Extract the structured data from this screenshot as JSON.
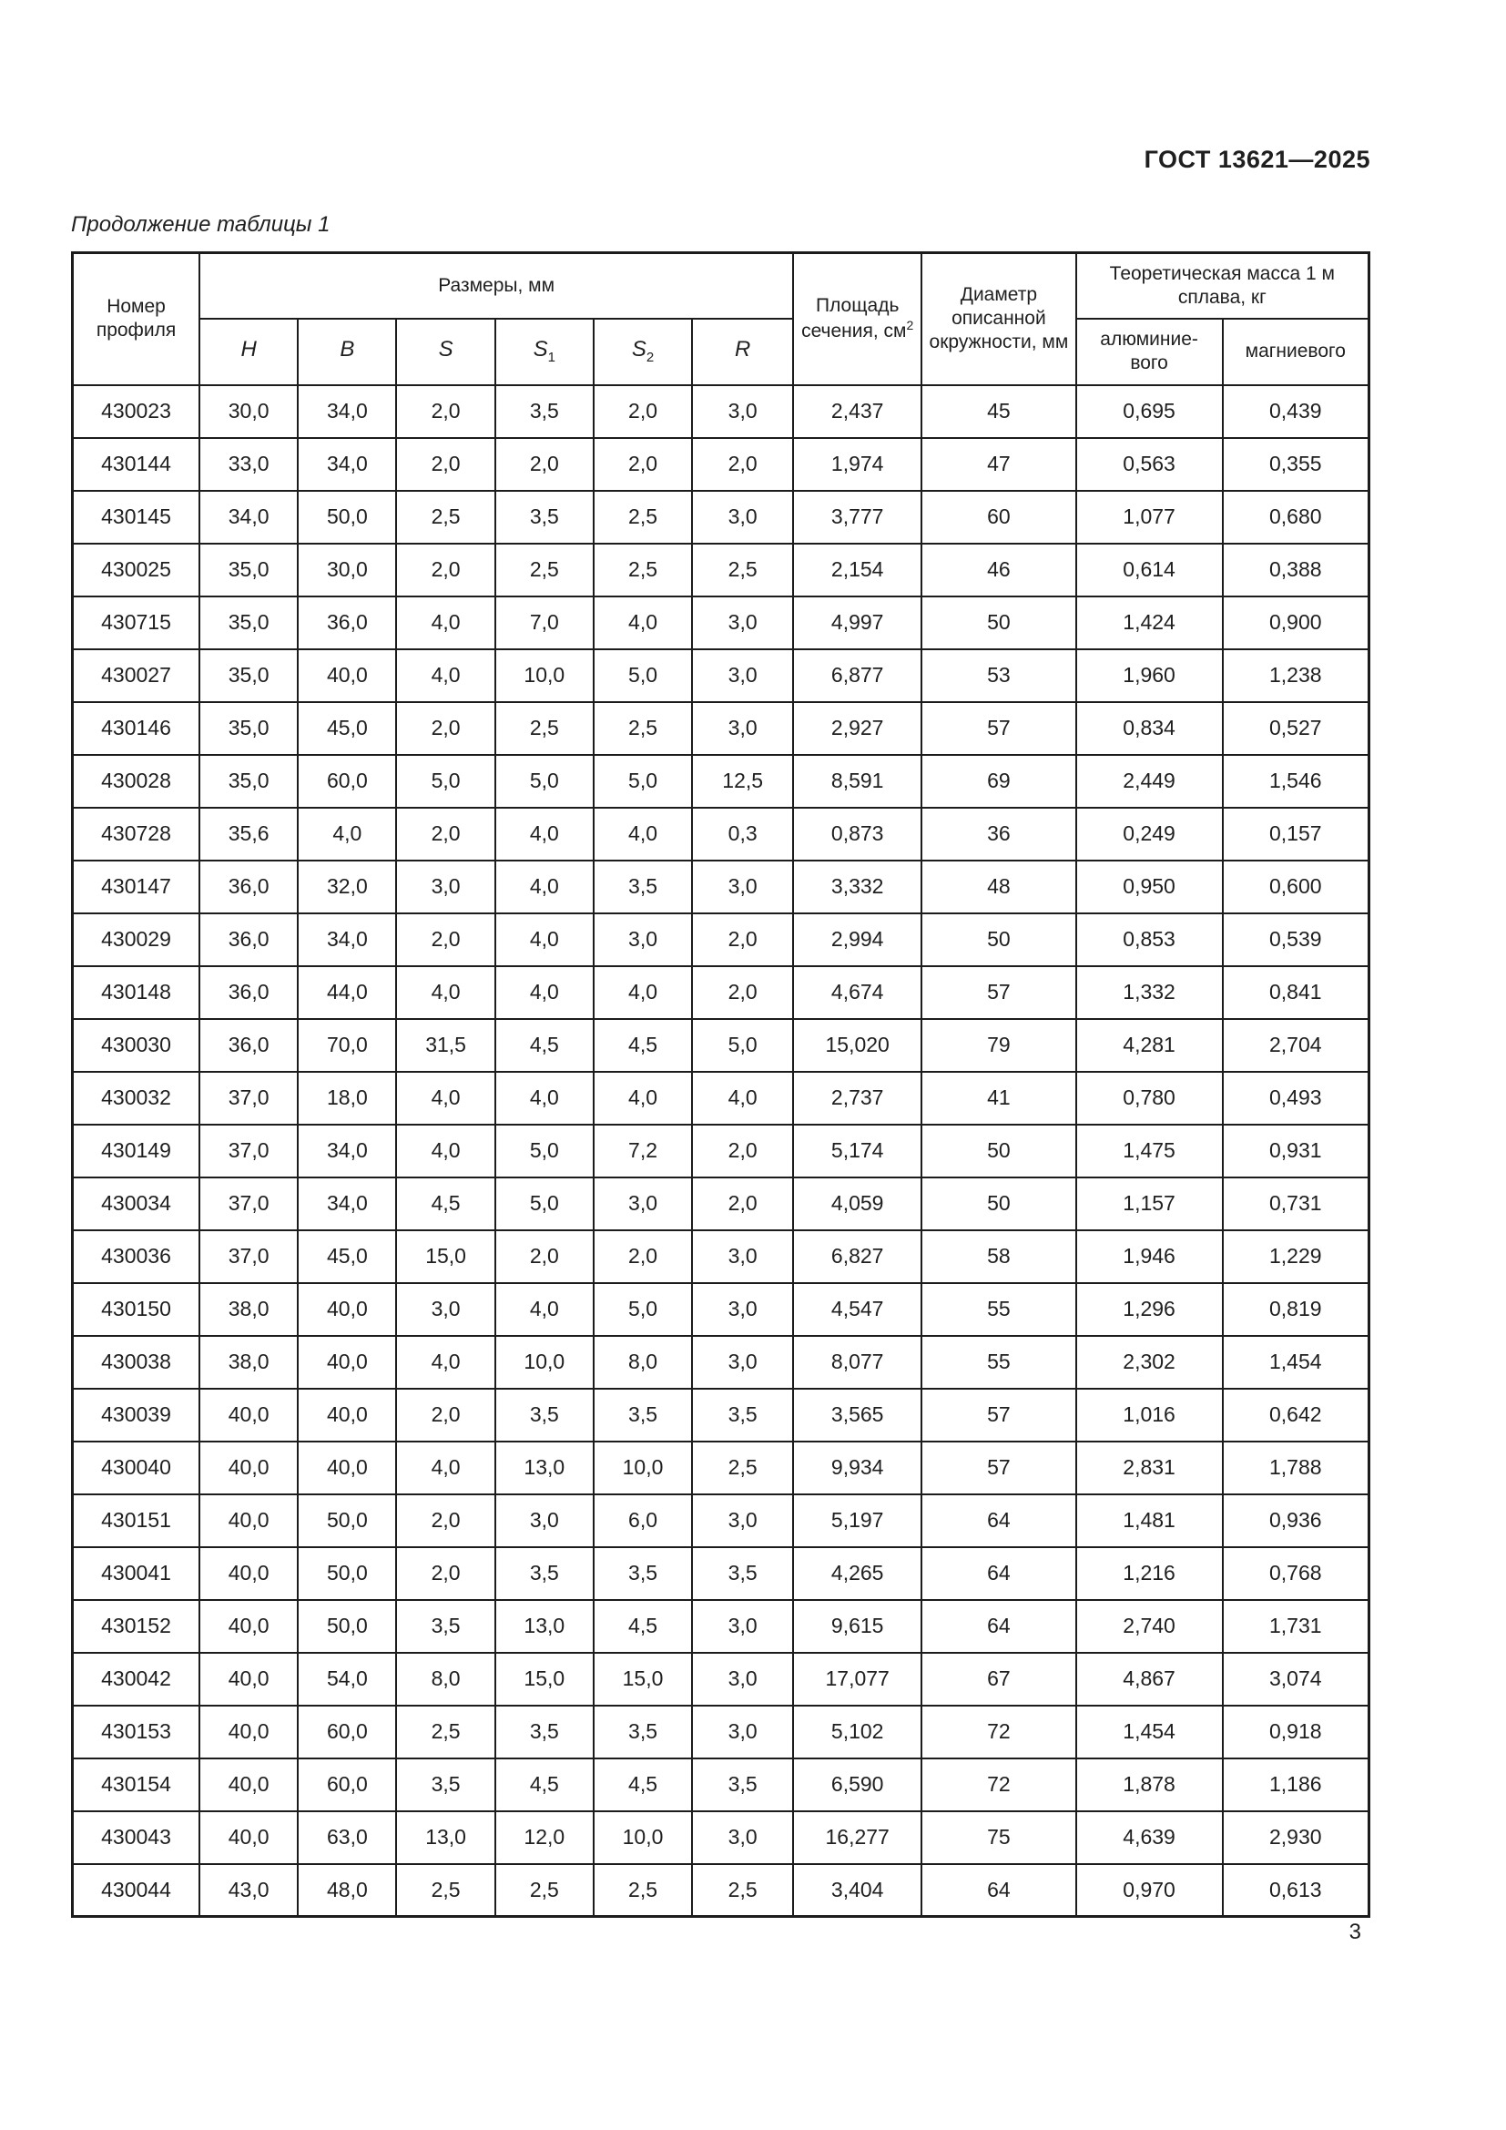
{
  "page": {
    "standard_code": "ГОСТ 13621—2025",
    "table_caption": "Продолжение таблицы 1",
    "page_number": "3"
  },
  "table": {
    "header": {
      "profile_number": "Номер профиля",
      "dimensions_group": "Размеры, мм",
      "dim_cols": [
        {
          "base": "H",
          "sub": ""
        },
        {
          "base": "B",
          "sub": ""
        },
        {
          "base": "S",
          "sub": ""
        },
        {
          "base": "S",
          "sub": "1"
        },
        {
          "base": "S",
          "sub": "2"
        },
        {
          "base": "R",
          "sub": ""
        }
      ],
      "area_main": "Площадь сечения, см",
      "area_sup": "2",
      "diameter": "Диаметр описанной окружности, мм",
      "mass_group": "Теоретическая масса 1 м сплава, кг",
      "mass_aluminum_line1": "алюминие-",
      "mass_aluminum_line2": "вого",
      "mass_magnesium": "магниевого"
    },
    "rows": [
      [
        "430023",
        "30,0",
        "34,0",
        "2,0",
        "3,5",
        "2,0",
        "3,0",
        "2,437",
        "45",
        "0,695",
        "0,439"
      ],
      [
        "430144",
        "33,0",
        "34,0",
        "2,0",
        "2,0",
        "2,0",
        "2,0",
        "1,974",
        "47",
        "0,563",
        "0,355"
      ],
      [
        "430145",
        "34,0",
        "50,0",
        "2,5",
        "3,5",
        "2,5",
        "3,0",
        "3,777",
        "60",
        "1,077",
        "0,680"
      ],
      [
        "430025",
        "35,0",
        "30,0",
        "2,0",
        "2,5",
        "2,5",
        "2,5",
        "2,154",
        "46",
        "0,614",
        "0,388"
      ],
      [
        "430715",
        "35,0",
        "36,0",
        "4,0",
        "7,0",
        "4,0",
        "3,0",
        "4,997",
        "50",
        "1,424",
        "0,900"
      ],
      [
        "430027",
        "35,0",
        "40,0",
        "4,0",
        "10,0",
        "5,0",
        "3,0",
        "6,877",
        "53",
        "1,960",
        "1,238"
      ],
      [
        "430146",
        "35,0",
        "45,0",
        "2,0",
        "2,5",
        "2,5",
        "3,0",
        "2,927",
        "57",
        "0,834",
        "0,527"
      ],
      [
        "430028",
        "35,0",
        "60,0",
        "5,0",
        "5,0",
        "5,0",
        "12,5",
        "8,591",
        "69",
        "2,449",
        "1,546"
      ],
      [
        "430728",
        "35,6",
        "4,0",
        "2,0",
        "4,0",
        "4,0",
        "0,3",
        "0,873",
        "36",
        "0,249",
        "0,157"
      ],
      [
        "430147",
        "36,0",
        "32,0",
        "3,0",
        "4,0",
        "3,5",
        "3,0",
        "3,332",
        "48",
        "0,950",
        "0,600"
      ],
      [
        "430029",
        "36,0",
        "34,0",
        "2,0",
        "4,0",
        "3,0",
        "2,0",
        "2,994",
        "50",
        "0,853",
        "0,539"
      ],
      [
        "430148",
        "36,0",
        "44,0",
        "4,0",
        "4,0",
        "4,0",
        "2,0",
        "4,674",
        "57",
        "1,332",
        "0,841"
      ],
      [
        "430030",
        "36,0",
        "70,0",
        "31,5",
        "4,5",
        "4,5",
        "5,0",
        "15,020",
        "79",
        "4,281",
        "2,704"
      ],
      [
        "430032",
        "37,0",
        "18,0",
        "4,0",
        "4,0",
        "4,0",
        "4,0",
        "2,737",
        "41",
        "0,780",
        "0,493"
      ],
      [
        "430149",
        "37,0",
        "34,0",
        "4,0",
        "5,0",
        "7,2",
        "2,0",
        "5,174",
        "50",
        "1,475",
        "0,931"
      ],
      [
        "430034",
        "37,0",
        "34,0",
        "4,5",
        "5,0",
        "3,0",
        "2,0",
        "4,059",
        "50",
        "1,157",
        "0,731"
      ],
      [
        "430036",
        "37,0",
        "45,0",
        "15,0",
        "2,0",
        "2,0",
        "3,0",
        "6,827",
        "58",
        "1,946",
        "1,229"
      ],
      [
        "430150",
        "38,0",
        "40,0",
        "3,0",
        "4,0",
        "5,0",
        "3,0",
        "4,547",
        "55",
        "1,296",
        "0,819"
      ],
      [
        "430038",
        "38,0",
        "40,0",
        "4,0",
        "10,0",
        "8,0",
        "3,0",
        "8,077",
        "55",
        "2,302",
        "1,454"
      ],
      [
        "430039",
        "40,0",
        "40,0",
        "2,0",
        "3,5",
        "3,5",
        "3,5",
        "3,565",
        "57",
        "1,016",
        "0,642"
      ],
      [
        "430040",
        "40,0",
        "40,0",
        "4,0",
        "13,0",
        "10,0",
        "2,5",
        "9,934",
        "57",
        "2,831",
        "1,788"
      ],
      [
        "430151",
        "40,0",
        "50,0",
        "2,0",
        "3,0",
        "6,0",
        "3,0",
        "5,197",
        "64",
        "1,481",
        "0,936"
      ],
      [
        "430041",
        "40,0",
        "50,0",
        "2,0",
        "3,5",
        "3,5",
        "3,5",
        "4,265",
        "64",
        "1,216",
        "0,768"
      ],
      [
        "430152",
        "40,0",
        "50,0",
        "3,5",
        "13,0",
        "4,5",
        "3,0",
        "9,615",
        "64",
        "2,740",
        "1,731"
      ],
      [
        "430042",
        "40,0",
        "54,0",
        "8,0",
        "15,0",
        "15,0",
        "3,0",
        "17,077",
        "67",
        "4,867",
        "3,074"
      ],
      [
        "430153",
        "40,0",
        "60,0",
        "2,5",
        "3,5",
        "3,5",
        "3,0",
        "5,102",
        "72",
        "1,454",
        "0,918"
      ],
      [
        "430154",
        "40,0",
        "60,0",
        "3,5",
        "4,5",
        "4,5",
        "3,5",
        "6,590",
        "72",
        "1,878",
        "1,186"
      ],
      [
        "430043",
        "40,0",
        "63,0",
        "13,0",
        "12,0",
        "10,0",
        "3,0",
        "16,277",
        "75",
        "4,639",
        "2,930"
      ],
      [
        "430044",
        "43,0",
        "48,0",
        "2,5",
        "2,5",
        "2,5",
        "2,5",
        "3,404",
        "64",
        "0,970",
        "0,613"
      ]
    ]
  }
}
